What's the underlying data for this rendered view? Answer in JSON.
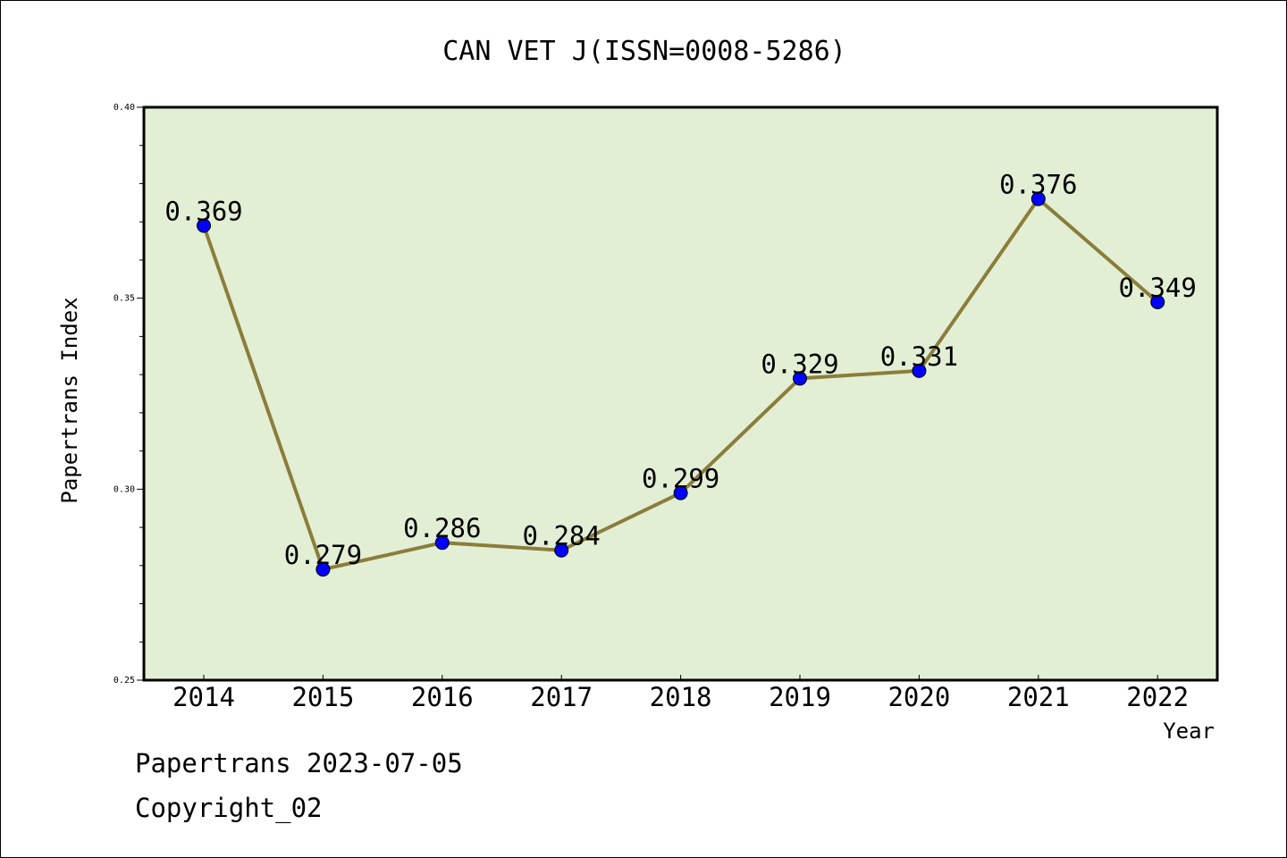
{
  "chart_data": {
    "type": "line",
    "title": "CAN VET J(ISSN=0008-5286)",
    "xlabel": "Year",
    "ylabel": "Papertrans Index",
    "categories": [
      "2014",
      "2015",
      "2016",
      "2017",
      "2018",
      "2019",
      "2020",
      "2021",
      "2022"
    ],
    "series": [
      {
        "values": [
          0.369,
          0.279,
          0.286,
          0.284,
          0.299,
          0.329,
          0.331,
          0.376,
          0.349
        ],
        "labels": [
          "0.369",
          "0.279",
          "0.286",
          "0.284",
          "0.299",
          "0.329",
          "0.331",
          "0.376",
          "0.349"
        ]
      }
    ],
    "ylim": [
      0.25,
      0.4
    ],
    "yticks": [
      "0.25",
      "0.30",
      "0.35",
      "0.40"
    ],
    "grid": false,
    "colors": {
      "plot_background": "#e2efd5",
      "line": "#8b7d3a",
      "marker": "#0000ff"
    }
  },
  "footer": {
    "line1": "Papertrans 2023-07-05",
    "line2": "Copyright_02"
  }
}
